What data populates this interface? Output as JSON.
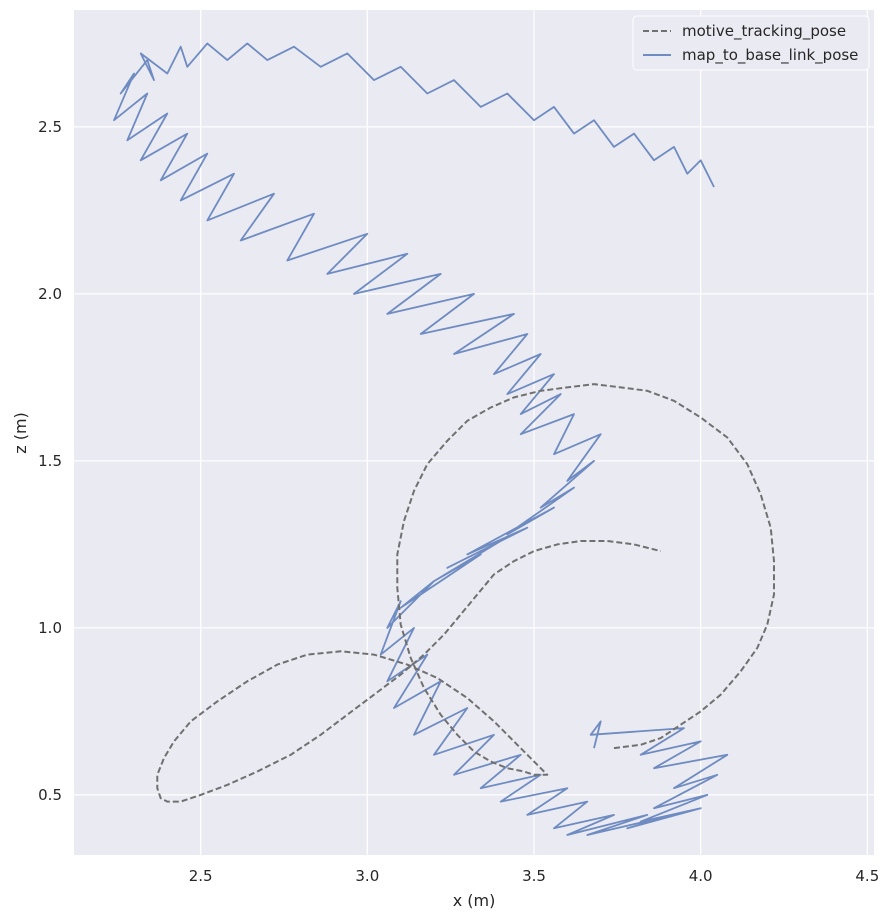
{
  "chart_data": {
    "type": "line",
    "xlabel": "x (m)",
    "ylabel": "z (m)",
    "xlim": [
      2.12,
      4.52
    ],
    "ylim": [
      0.32,
      2.85
    ],
    "xticks": [
      2.5,
      3.0,
      3.5,
      4.0,
      4.5
    ],
    "yticks": [
      0.5,
      1.0,
      1.5,
      2.0,
      2.5
    ],
    "xtick_labels": [
      "2.5",
      "3.0",
      "3.5",
      "4.0",
      "4.5"
    ],
    "ytick_labels": [
      "0.5",
      "1.0",
      "1.5",
      "2.0",
      "2.5"
    ],
    "grid": true,
    "legend_position": "top-right",
    "background": "#eaeaf2",
    "series": [
      {
        "name": "motive_tracking_pose",
        "style": "dashed",
        "color": "#707070",
        "x": [
          3.74,
          3.82,
          3.88,
          3.94,
          4.0,
          4.06,
          4.12,
          4.17,
          4.2,
          4.22,
          4.22,
          4.21,
          4.18,
          4.14,
          4.08,
          4.0,
          3.92,
          3.84,
          3.76,
          3.68,
          3.6,
          3.52,
          3.44,
          3.37,
          3.3,
          3.24,
          3.18,
          3.14,
          3.11,
          3.09,
          3.09,
          3.1,
          3.13,
          3.17,
          3.22,
          3.27,
          3.32,
          3.37,
          3.42,
          3.47,
          3.5,
          3.52,
          3.53,
          3.54,
          3.54,
          3.53,
          3.5,
          3.45,
          3.38,
          3.3,
          3.21,
          3.12,
          3.02,
          2.92,
          2.82,
          2.73,
          2.64,
          2.55,
          2.47,
          2.42,
          2.39,
          2.37,
          2.37,
          2.38,
          2.4,
          2.44,
          2.5,
          2.58,
          2.67,
          2.77,
          2.86,
          2.94,
          3.02,
          3.1,
          3.17,
          3.23,
          3.28,
          3.33,
          3.38,
          3.44,
          3.5,
          3.57,
          3.64,
          3.72,
          3.8,
          3.88
        ],
        "y": [
          0.64,
          0.65,
          0.67,
          0.71,
          0.75,
          0.8,
          0.87,
          0.94,
          1.01,
          1.1,
          1.2,
          1.3,
          1.4,
          1.49,
          1.57,
          1.63,
          1.68,
          1.71,
          1.72,
          1.73,
          1.72,
          1.71,
          1.69,
          1.66,
          1.62,
          1.56,
          1.49,
          1.41,
          1.32,
          1.22,
          1.12,
          1.01,
          0.91,
          0.82,
          0.74,
          0.68,
          0.63,
          0.6,
          0.58,
          0.57,
          0.56,
          0.56,
          0.56,
          0.56,
          0.56,
          0.57,
          0.6,
          0.65,
          0.72,
          0.79,
          0.85,
          0.89,
          0.92,
          0.93,
          0.92,
          0.89,
          0.84,
          0.78,
          0.72,
          0.66,
          0.61,
          0.56,
          0.52,
          0.49,
          0.48,
          0.48,
          0.5,
          0.53,
          0.57,
          0.62,
          0.68,
          0.74,
          0.8,
          0.86,
          0.92,
          0.98,
          1.04,
          1.1,
          1.16,
          1.2,
          1.23,
          1.25,
          1.26,
          1.26,
          1.25,
          1.23
        ]
      },
      {
        "name": "map_to_base_link_pose",
        "style": "solid",
        "color": "#6e8bc2",
        "x": [
          3.68,
          3.7,
          3.67,
          3.95,
          3.82,
          4.0,
          3.86,
          4.08,
          3.92,
          4.05,
          3.86,
          4.02,
          3.82,
          4.0,
          3.78,
          3.92,
          3.66,
          3.84,
          3.6,
          3.74,
          3.56,
          3.66,
          3.48,
          3.6,
          3.4,
          3.52,
          3.34,
          3.46,
          3.26,
          3.38,
          3.2,
          3.3,
          3.14,
          3.22,
          3.08,
          3.18,
          3.06,
          3.14,
          3.04,
          3.1,
          3.06,
          3.2,
          3.1,
          3.28,
          3.16,
          3.34,
          3.2,
          3.4,
          3.24,
          3.48,
          3.3,
          3.56,
          3.42,
          3.62,
          3.52,
          3.68,
          3.6,
          3.7,
          3.56,
          3.62,
          3.46,
          3.58,
          3.46,
          3.56,
          3.42,
          3.52,
          3.38,
          3.48,
          3.26,
          3.44,
          3.16,
          3.32,
          3.06,
          3.22,
          2.96,
          3.12,
          2.88,
          3.0,
          2.76,
          2.84,
          2.62,
          2.72,
          2.52,
          2.6,
          2.44,
          2.52,
          2.38,
          2.46,
          2.32,
          2.4,
          2.28,
          2.34,
          2.24,
          2.3,
          2.26,
          2.34,
          2.36,
          2.32,
          2.4,
          2.44,
          2.46,
          2.52,
          2.58,
          2.64,
          2.7,
          2.78,
          2.86,
          2.94,
          3.02,
          3.1,
          3.18,
          3.26,
          3.34,
          3.42,
          3.5,
          3.56,
          3.62,
          3.68,
          3.74,
          3.8,
          3.86,
          3.92,
          3.96,
          4.0,
          4.04
        ],
        "y": [
          0.64,
          0.72,
          0.68,
          0.7,
          0.62,
          0.66,
          0.58,
          0.62,
          0.52,
          0.56,
          0.46,
          0.5,
          0.42,
          0.46,
          0.4,
          0.44,
          0.38,
          0.44,
          0.38,
          0.44,
          0.4,
          0.48,
          0.44,
          0.52,
          0.48,
          0.56,
          0.52,
          0.62,
          0.56,
          0.68,
          0.62,
          0.76,
          0.68,
          0.84,
          0.76,
          0.92,
          0.84,
          1.0,
          0.92,
          1.08,
          1.0,
          1.14,
          1.06,
          1.18,
          1.1,
          1.22,
          1.14,
          1.26,
          1.18,
          1.3,
          1.22,
          1.36,
          1.28,
          1.42,
          1.36,
          1.5,
          1.44,
          1.58,
          1.52,
          1.64,
          1.58,
          1.7,
          1.64,
          1.76,
          1.7,
          1.82,
          1.76,
          1.88,
          1.82,
          1.94,
          1.88,
          2.0,
          1.94,
          2.06,
          2.0,
          2.12,
          2.06,
          2.18,
          2.1,
          2.24,
          2.16,
          2.3,
          2.22,
          2.36,
          2.28,
          2.42,
          2.34,
          2.48,
          2.4,
          2.54,
          2.46,
          2.6,
          2.52,
          2.66,
          2.6,
          2.7,
          2.64,
          2.72,
          2.66,
          2.74,
          2.68,
          2.75,
          2.7,
          2.75,
          2.7,
          2.74,
          2.68,
          2.72,
          2.64,
          2.68,
          2.6,
          2.64,
          2.56,
          2.6,
          2.52,
          2.56,
          2.48,
          2.52,
          2.44,
          2.48,
          2.4,
          2.44,
          2.36,
          2.4,
          2.32
        ]
      }
    ]
  }
}
